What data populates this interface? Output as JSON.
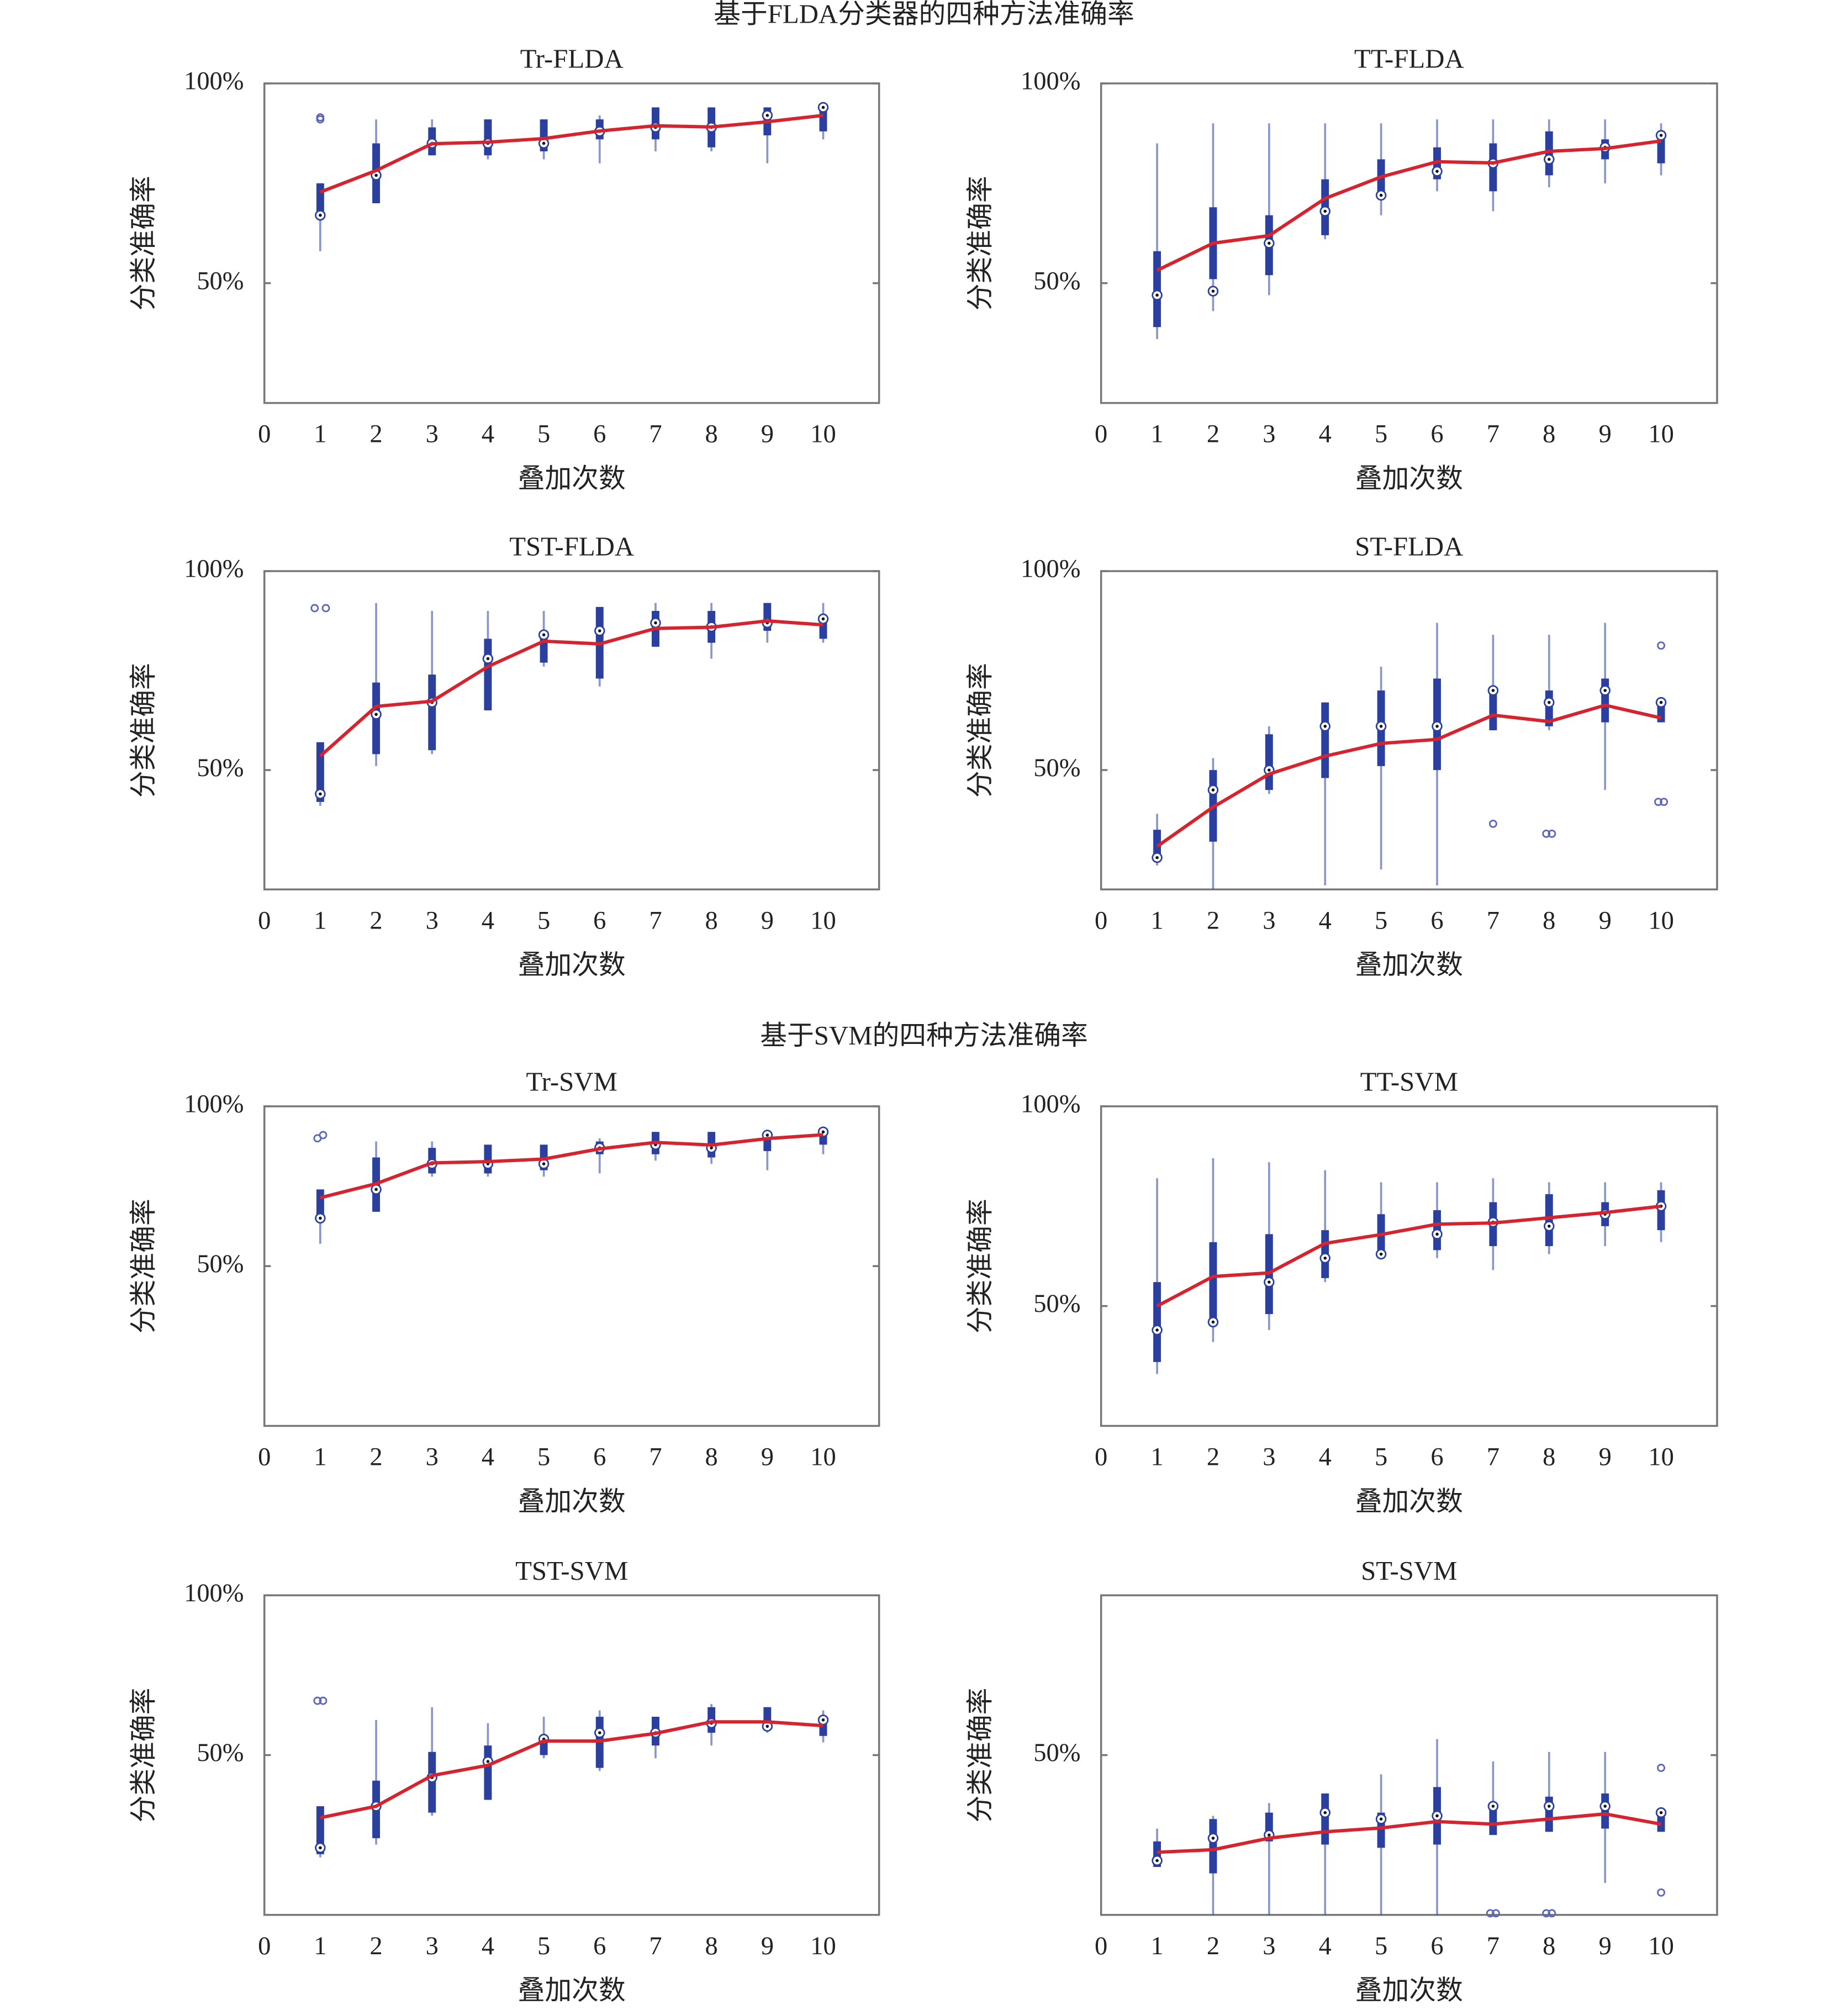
{
  "figure_titles": [
    "基于FLDA分类器的四种方法准确率",
    "基于SVM的四种方法准确率"
  ],
  "chart_data": [
    {
      "type": "box",
      "title": "Tr-FLDA",
      "xlabel": "叠加次数",
      "ylabel": "分类准确率",
      "x": [
        1,
        2,
        3,
        4,
        5,
        6,
        7,
        8,
        9,
        10
      ],
      "xlim": [
        0,
        11
      ],
      "xticks": [
        0,
        1,
        2,
        3,
        4,
        5,
        6,
        7,
        8,
        9,
        10
      ],
      "ylim": [
        20,
        100
      ],
      "yticks": [
        {
          "value": 50,
          "label": "50%"
        },
        {
          "value": 100,
          "label": "100%"
        }
      ],
      "box_color": "#2b3f9e",
      "mean_color": "#d6232e",
      "boxes": [
        [
          58,
          68,
          67,
          75,
          75
        ],
        [
          70,
          70,
          77,
          85,
          91
        ],
        [
          82,
          82,
          85,
          89,
          91
        ],
        [
          81,
          82,
          85,
          91,
          91
        ],
        [
          81,
          83,
          85,
          91,
          91
        ],
        [
          80,
          86,
          88,
          91,
          92
        ],
        [
          83,
          86,
          89,
          94,
          94
        ],
        [
          83,
          84,
          89,
          94,
          94
        ],
        [
          80,
          87,
          92,
          94,
          94
        ],
        [
          86,
          88,
          94,
          94,
          94
        ]
      ],
      "mean": [
        72.8,
        78.2,
        84.9,
        85.3,
        86.2,
        88.1,
        89.4,
        89.1,
        90.4,
        92
      ],
      "outliers": [
        [
          1,
          91
        ],
        [
          1,
          91.5
        ]
      ]
    },
    {
      "type": "box",
      "title": "TT-FLDA",
      "xlabel": "叠加次数",
      "ylabel": "分类准确率",
      "x": [
        1,
        2,
        3,
        4,
        5,
        6,
        7,
        8,
        9,
        10
      ],
      "xlim": [
        0,
        11
      ],
      "xticks": [
        0,
        1,
        2,
        3,
        4,
        5,
        6,
        7,
        8,
        9,
        10
      ],
      "ylim": [
        20,
        100
      ],
      "yticks": [
        {
          "value": 50,
          "label": "50%"
        },
        {
          "value": 100,
          "label": "100%"
        }
      ],
      "box_color": "#2b3f9e",
      "mean_color": "#d6232e",
      "boxes": [
        [
          36,
          39,
          47,
          58,
          85
        ],
        [
          43,
          51,
          48,
          69,
          90
        ],
        [
          47,
          52,
          60,
          67,
          90
        ],
        [
          61,
          62,
          68,
          76,
          90
        ],
        [
          67,
          72,
          72,
          81,
          90
        ],
        [
          73,
          76,
          78,
          84,
          91
        ],
        [
          68,
          73,
          80,
          85,
          91
        ],
        [
          74,
          77,
          81,
          88,
          91
        ],
        [
          75,
          81,
          84,
          86,
          91
        ],
        [
          77,
          80,
          87,
          88,
          90
        ]
      ],
      "mean": [
        53.2,
        60,
        61.9,
        71.2,
        76.6,
        80.4,
        80.1,
        83,
        83.7,
        85.6
      ],
      "outliers": []
    },
    {
      "type": "box",
      "title": "TST-FLDA",
      "xlabel": "叠加次数",
      "ylabel": "分类准确率",
      "x": [
        1,
        2,
        3,
        4,
        5,
        6,
        7,
        8,
        9,
        10
      ],
      "xlim": [
        0,
        11
      ],
      "xticks": [
        0,
        1,
        2,
        3,
        4,
        5,
        6,
        7,
        8,
        9,
        10
      ],
      "ylim": [
        20,
        100
      ],
      "yticks": [
        {
          "value": 50,
          "label": "50%"
        },
        {
          "value": 100,
          "label": "100%"
        }
      ],
      "box_color": "#2b3f9e",
      "mean_color": "#d6232e",
      "boxes": [
        [
          41,
          42,
          44,
          57,
          57
        ],
        [
          51,
          54,
          64,
          72,
          92
        ],
        [
          54,
          55,
          67,
          74,
          90
        ],
        [
          65,
          65,
          78,
          83,
          90
        ],
        [
          76,
          77,
          84,
          85,
          90
        ],
        [
          71,
          73,
          85,
          91,
          91
        ],
        [
          81,
          81,
          87,
          90,
          92
        ],
        [
          78,
          82,
          86,
          90,
          92
        ],
        [
          82,
          85,
          87,
          92,
          92
        ],
        [
          82,
          83,
          88,
          88,
          92
        ]
      ],
      "mean": [
        53.5,
        66,
        67.3,
        76,
        82.4,
        81.7,
        85.6,
        85.9,
        87.5,
        86.5
      ],
      "outliers": [
        [
          0.9,
          90.7
        ],
        [
          1.1,
          90.7
        ]
      ]
    },
    {
      "type": "box",
      "title": "ST-FLDA",
      "xlabel": "叠加次数",
      "ylabel": "分类准确率",
      "x": [
        1,
        2,
        3,
        4,
        5,
        6,
        7,
        8,
        9,
        10
      ],
      "xlim": [
        0,
        11
      ],
      "xticks": [
        0,
        1,
        2,
        3,
        4,
        5,
        6,
        7,
        8,
        9,
        10
      ],
      "ylim": [
        20,
        100
      ],
      "yticks": [
        {
          "value": 50,
          "label": "50%"
        },
        {
          "value": 100,
          "label": "100%"
        }
      ],
      "box_color": "#2b3f9e",
      "mean_color": "#d6232e",
      "boxes": [
        [
          26,
          27,
          28,
          35,
          39
        ],
        [
          20,
          32,
          45,
          50,
          53
        ],
        [
          44,
          45,
          50,
          59,
          61
        ],
        [
          21,
          48,
          61,
          67,
          67
        ],
        [
          25,
          51,
          61,
          70,
          76
        ],
        [
          21,
          50,
          61,
          73,
          87
        ],
        [
          60,
          60,
          70,
          70,
          84
        ],
        [
          60,
          61,
          67,
          70,
          84
        ],
        [
          45,
          62,
          70,
          73,
          87
        ],
        [
          62,
          62,
          67,
          67,
          67
        ]
      ],
      "mean": [
        30.8,
        40.7,
        49,
        53.5,
        56.7,
        57.7,
        63.8,
        62.2,
        66.3,
        63.1
      ],
      "outliers": [
        [
          7,
          36.5
        ],
        [
          7.95,
          34
        ],
        [
          8.05,
          34
        ],
        [
          10,
          81.3
        ],
        [
          9.95,
          42
        ],
        [
          10.05,
          42
        ]
      ]
    },
    {
      "type": "box",
      "title": "Tr-SVM",
      "xlabel": "叠加次数",
      "ylabel": "分类准确率",
      "x": [
        1,
        2,
        3,
        4,
        5,
        6,
        7,
        8,
        9,
        10
      ],
      "xlim": [
        0,
        11
      ],
      "xticks": [
        0,
        1,
        2,
        3,
        4,
        5,
        6,
        7,
        8,
        9,
        10
      ],
      "ylim": [
        0,
        100
      ],
      "yticks": [
        {
          "value": 50,
          "label": "50%"
        },
        {
          "value": 100,
          "label": "100%"
        }
      ],
      "box_color": "#2b3f9e",
      "mean_color": "#d6232e",
      "boxes": [
        [
          57,
          66,
          65,
          74,
          74
        ],
        [
          67,
          67,
          74,
          84,
          89
        ],
        [
          78,
          79,
          82,
          87,
          89
        ],
        [
          78,
          79,
          82,
          88,
          88
        ],
        [
          78,
          80,
          82,
          88,
          88
        ],
        [
          79,
          85,
          87,
          89,
          90
        ],
        [
          83,
          85,
          88,
          92,
          92
        ],
        [
          82,
          84,
          87,
          92,
          92
        ],
        [
          80,
          86,
          91,
          92,
          92
        ],
        [
          85,
          88,
          92,
          92,
          93
        ]
      ],
      "mean": [
        71.4,
        75.8,
        82.3,
        82.7,
        83.5,
        86.7,
        88.7,
        87.9,
        89.9,
        91.1
      ],
      "outliers": [
        [
          0.95,
          90
        ],
        [
          1.05,
          91
        ]
      ]
    },
    {
      "type": "box",
      "title": "TT-SVM",
      "xlabel": "叠加次数",
      "ylabel": "分类准确率",
      "x": [
        1,
        2,
        3,
        4,
        5,
        6,
        7,
        8,
        9,
        10
      ],
      "xlim": [
        0,
        11
      ],
      "xticks": [
        0,
        1,
        2,
        3,
        4,
        5,
        6,
        7,
        8,
        9,
        10
      ],
      "ylim": [
        20,
        100
      ],
      "yticks": [
        {
          "value": 50,
          "label": "50%"
        },
        {
          "value": 100,
          "label": "100%"
        }
      ],
      "box_color": "#2b3f9e",
      "mean_color": "#d6232e",
      "boxes": [
        [
          33,
          36,
          44,
          56,
          82
        ],
        [
          41,
          45,
          46,
          66,
          87
        ],
        [
          44,
          48,
          56,
          68,
          86
        ],
        [
          56,
          57,
          62,
          69,
          84
        ],
        [
          62,
          64,
          63,
          73,
          81
        ],
        [
          62,
          64,
          68,
          74,
          81
        ],
        [
          59,
          65,
          71,
          76,
          82
        ],
        [
          63,
          65,
          70,
          78,
          81
        ],
        [
          65,
          70,
          73,
          76,
          81
        ],
        [
          66,
          69,
          75,
          79,
          81
        ]
      ],
      "mean": [
        50,
        57.4,
        58.3,
        65.7,
        67.9,
        70.5,
        70.8,
        72.1,
        73.4,
        75
      ],
      "outliers": []
    },
    {
      "type": "box",
      "title": "TST-SVM",
      "xlabel": "叠加次数",
      "ylabel": "分类准确率",
      "x": [
        1,
        2,
        3,
        4,
        5,
        6,
        7,
        8,
        9,
        10
      ],
      "xlim": [
        0,
        11
      ],
      "xticks": [
        0,
        1,
        2,
        3,
        4,
        5,
        6,
        7,
        8,
        9,
        10
      ],
      "ylim": [
        0,
        100
      ],
      "yticks": [
        {
          "value": 50,
          "label": "50%"
        },
        {
          "value": 100,
          "label": "100%"
        }
      ],
      "box_color": "#2b3f9e",
      "mean_color": "#d6232e",
      "boxes": [
        [
          18,
          19,
          21,
          34,
          34
        ],
        [
          22,
          24,
          34,
          42,
          61
        ],
        [
          31,
          32,
          43,
          51,
          65
        ],
        [
          36,
          36,
          48,
          53,
          60
        ],
        [
          49,
          50,
          55,
          56,
          62
        ],
        [
          45,
          46,
          57,
          62,
          64
        ],
        [
          49,
          53,
          57,
          62,
          62
        ],
        [
          53,
          57,
          60,
          65,
          66
        ],
        [
          57,
          58,
          59,
          65,
          65
        ],
        [
          54,
          56,
          61,
          62,
          64
        ]
      ],
      "mean": [
        30.4,
        34,
        43.6,
        46.8,
        54.4,
        54.4,
        56.8,
        60.4,
        60.4,
        59.2
      ],
      "outliers": [
        [
          0.95,
          67
        ],
        [
          1.05,
          67
        ]
      ]
    },
    {
      "type": "box",
      "title": "ST-SVM",
      "xlabel": "叠加次数",
      "ylabel": "分类准确率",
      "x": [
        1,
        2,
        3,
        4,
        5,
        6,
        7,
        8,
        9,
        10
      ],
      "xlim": [
        0,
        11
      ],
      "xticks": [
        0,
        1,
        2,
        3,
        4,
        5,
        6,
        7,
        8,
        9,
        10
      ],
      "ylim": [
        0,
        100
      ],
      "yticks": [
        {
          "value": 50,
          "label": "50%"
        }
      ],
      "box_color": "#2b3f9e",
      "mean_color": "#d6232e",
      "boxes": [
        [
          15,
          15,
          17,
          23,
          27
        ],
        [
          0,
          13,
          24,
          30,
          31
        ],
        [
          0,
          23,
          25,
          32,
          35
        ],
        [
          0,
          22,
          32,
          38,
          38
        ],
        [
          0,
          21,
          30,
          32,
          44
        ],
        [
          0,
          22,
          31,
          40,
          55
        ],
        [
          25,
          25,
          34,
          35,
          48
        ],
        [
          26,
          26,
          34,
          37,
          51
        ],
        [
          10,
          27,
          34,
          38,
          51
        ],
        [
          26,
          26,
          32,
          32,
          33
        ]
      ],
      "mean": [
        19.6,
        20.4,
        24,
        26,
        27.2,
        29.2,
        28.4,
        30,
        31.6,
        28.4
      ],
      "outliers": [
        [
          6.95,
          0.5
        ],
        [
          7.05,
          0.5
        ],
        [
          7.95,
          0.5
        ],
        [
          8.05,
          0.5
        ],
        [
          10,
          46
        ],
        [
          10,
          7
        ]
      ]
    }
  ]
}
